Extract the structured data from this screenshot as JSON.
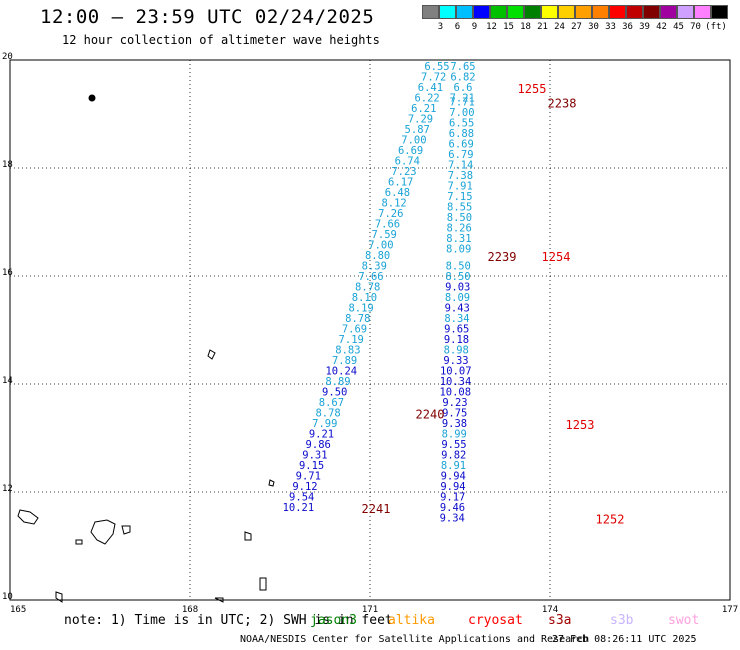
{
  "title": "12:00 – 23:59 UTC 02/24/2025",
  "subtitle": "12 hour collection of altimeter wave heights",
  "legend": {
    "colors": [
      "#808080",
      "#00ffff",
      "#00bfff",
      "#0000ff",
      "#00c000",
      "#00e000",
      "#008000",
      "#ffff00",
      "#ffd000",
      "#ffa000",
      "#ff8000",
      "#ff0000",
      "#c00000",
      "#800000",
      "#a000a0",
      "#d0a0ff",
      "#ff80ff",
      "#000000"
    ],
    "labels": [
      "3",
      "6",
      "9",
      "12",
      "15",
      "18",
      "21",
      "24",
      "27",
      "30",
      "33",
      "36",
      "39",
      "42",
      "45",
      "70",
      "(ft)"
    ]
  },
  "map": {
    "lon_ticks": [
      "165",
      "168",
      "171",
      "174",
      "177"
    ],
    "lat_ticks": [
      "20",
      "18",
      "16",
      "14",
      "12",
      "10"
    ],
    "tracks": [
      {
        "satellite": "jason3",
        "color": "#19a3d6",
        "points": [
          [
            "6.55",
            166.9
          ],
          [
            "7.72",
            166.4
          ],
          [
            "6.41",
            165.9
          ],
          [
            "6.22",
            165.4
          ],
          [
            "6.21",
            164.9
          ],
          [
            "7.29",
            164.4
          ],
          [
            "5.87",
            163.9
          ],
          [
            "7.00",
            163.4
          ],
          [
            "6.69",
            162.9
          ],
          [
            "6.74",
            162.4
          ],
          [
            "7.23",
            161.9
          ],
          [
            "6.17",
            161.4
          ],
          [
            "6.48",
            160.9
          ],
          [
            "8.12",
            160.4
          ],
          [
            "7.26",
            159.9
          ],
          [
            "7.66",
            159.4
          ],
          [
            "7.59",
            158.9
          ],
          [
            "7.00",
            158.4
          ]
        ]
      },
      {
        "satellite": "jason3",
        "color": "#19a3d6",
        "points": [
          [
            "8.80",
            157.9
          ],
          [
            "8.39",
            157.4
          ],
          [
            "7.66",
            156.9
          ],
          [
            "8.78",
            156.4
          ],
          [
            "8.10",
            155.9
          ],
          [
            "8.19",
            155.4
          ],
          [
            "8.78",
            154.9
          ],
          [
            "7.69",
            154.4
          ],
          [
            "7.19",
            153.9
          ],
          [
            "8.83",
            153.4
          ],
          [
            "7.89",
            152.9
          ]
        ]
      },
      {
        "satellite": "jason3",
        "color": "#0a0acc",
        "points": [
          [
            "10.24",
            152.4
          ]
        ]
      },
      {
        "satellite": "jason3",
        "color": "#19a3d6",
        "points": [
          [
            "8.89",
            151.9
          ]
        ]
      },
      {
        "satellite": "jason3",
        "color": "#0a0acc",
        "points": [
          [
            "9.50",
            151.4
          ]
        ]
      },
      {
        "satellite": "jason3",
        "color": "#19a3d6",
        "points": [
          [
            "8.67",
            150.9
          ],
          [
            "8.78",
            150.4
          ],
          [
            "7.99",
            149.9
          ]
        ]
      },
      {
        "satellite": "jason3",
        "color": "#0a0acc",
        "points": [
          [
            "9.21",
            149.4
          ],
          [
            "9.86",
            148.9
          ],
          [
            "9.31",
            148.4
          ],
          [
            "9.15",
            147.9
          ],
          [
            "9.71",
            147.4
          ],
          [
            "9.12",
            146.9
          ],
          [
            "9.54",
            146.4
          ],
          [
            "10.21",
            145.9
          ]
        ]
      },
      {
        "satellite": "jason3",
        "color": "#19a3d6",
        "points": [
          [
            "7.65",
            166.9
          ],
          [
            "6.82",
            166.4
          ],
          [
            "6.6",
            165.9
          ],
          [
            "7.21",
            165.4
          ],
          [
            "7.71",
            165.2
          ],
          [
            "7.00",
            164.7
          ],
          [
            "6.55",
            164.2
          ],
          [
            "6.88",
            163.7
          ],
          [
            "6.69",
            163.2
          ],
          [
            "6.79",
            162.7
          ],
          [
            "7.14",
            162.2
          ],
          [
            "7.38",
            161.7
          ],
          [
            "7.91",
            161.2
          ],
          [
            "7.15",
            160.7
          ],
          [
            "8.55",
            160.2
          ],
          [
            "8.50",
            159.7
          ],
          [
            "8.26",
            159.2
          ],
          [
            "8.31",
            158.7
          ],
          [
            "8.09",
            158.2
          ]
        ]
      },
      {
        "satellite": "jason3",
        "color": "#19a3d6",
        "points": [
          [
            "8.50",
            157.4
          ],
          [
            "8.50",
            156.9
          ]
        ]
      },
      {
        "satellite": "jason3",
        "color": "#0a0acc",
        "points": [
          [
            "9.03",
            156.4
          ]
        ]
      },
      {
        "satellite": "jason3",
        "color": "#19a3d6",
        "points": [
          [
            "8.09",
            155.9
          ]
        ]
      },
      {
        "satellite": "jason3",
        "color": "#0a0acc",
        "points": [
          [
            "9.43",
            155.4
          ]
        ]
      },
      {
        "satellite": "jason3",
        "color": "#19a3d6",
        "points": [
          [
            "8.34",
            154.9
          ]
        ]
      },
      {
        "satellite": "jason3",
        "color": "#0a0acc",
        "points": [
          [
            "9.65",
            154.4
          ],
          [
            "9.18",
            153.9
          ]
        ]
      },
      {
        "satellite": "jason3",
        "color": "#19a3d6",
        "points": [
          [
            "8.98",
            153.4
          ]
        ]
      },
      {
        "satellite": "jason3",
        "color": "#0a0acc",
        "points": [
          [
            "9.33",
            152.9
          ],
          [
            "10.07",
            152.4
          ],
          [
            "10.34",
            151.9
          ],
          [
            "10.08",
            151.4
          ],
          [
            "9.23",
            150.9
          ],
          [
            "9.75",
            150.4
          ],
          [
            "9.38",
            149.9
          ]
        ]
      },
      {
        "satellite": "jason3",
        "color": "#19a3d6",
        "points": [
          [
            "8.99",
            149.4
          ]
        ]
      },
      {
        "satellite": "jason3",
        "color": "#0a0acc",
        "points": [
          [
            "9.55",
            148.9
          ],
          [
            "9.82",
            148.4
          ]
        ]
      },
      {
        "satellite": "jason3",
        "color": "#19a3d6",
        "points": [
          [
            "8.91",
            147.9
          ]
        ]
      },
      {
        "satellite": "jason3",
        "color": "#0a0acc",
        "points": [
          [
            "9.94",
            147.4
          ],
          [
            "9.94",
            146.9
          ],
          [
            "9.17",
            146.4
          ],
          [
            "9.46",
            145.9
          ],
          [
            "9.34",
            145.4
          ]
        ]
      }
    ],
    "time_labels": [
      {
        "text": "1255",
        "color": "#e00000",
        "lon": 173.7,
        "lat": 165.9
      },
      {
        "text": "2238",
        "color": "#800000",
        "lon": 174.2,
        "lat": 165.2
      },
      {
        "text": "2239",
        "color": "#800000",
        "lon": 173.2,
        "lat": 157.9
      },
      {
        "text": "1254",
        "color": "#e00000",
        "lon": 174.1,
        "lat": 157.9
      },
      {
        "text": "2240",
        "color": "#800000",
        "lon": 172.0,
        "lat": 150.4
      },
      {
        "text": "1253",
        "color": "#e00000",
        "lon": 174.5,
        "lat": 149.9
      },
      {
        "text": "2241",
        "color": "#800000",
        "lon": 171.1,
        "lat": 145.9
      },
      {
        "text": "1252",
        "color": "#e00000",
        "lon": 175.0,
        "lat": 145.4
      }
    ]
  },
  "footer": {
    "note": "note: 1) Time is in UTC; 2) SWH is in feet",
    "satellites": [
      {
        "name": "jason3",
        "color": "#008000"
      },
      {
        "name": "altika",
        "color": "#ff9900"
      },
      {
        "name": "cryosat",
        "color": "#ff0000"
      },
      {
        "name": "s3a",
        "color": "#a00000"
      },
      {
        "name": "s3b",
        "color": "#c8b4ff"
      },
      {
        "name": "swot",
        "color": "#ffa0e0"
      }
    ],
    "credit": "NOAA/NESDIS Center for Satellite Applications and Research",
    "timestamp": "27 Feb 08:26:11 UTC 2025"
  }
}
